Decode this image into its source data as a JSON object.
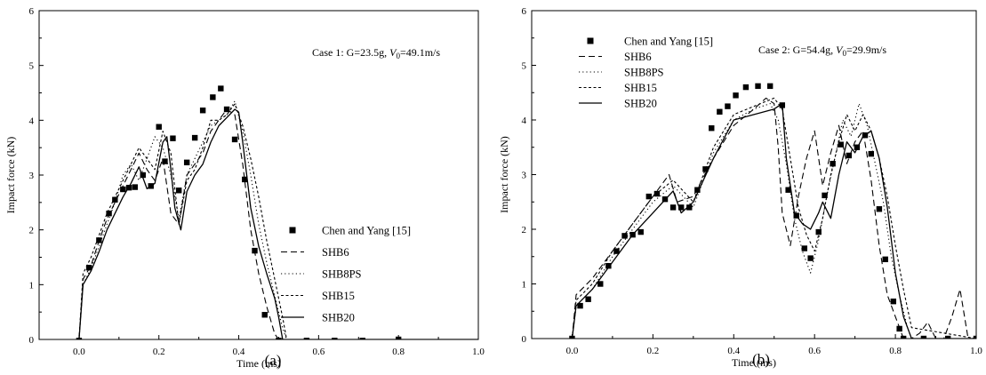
{
  "chart_data": [
    {
      "panel_label": "(a)",
      "type": "line",
      "annotation": {
        "prefix": "Case 1:  G=23.5g, ",
        "v_symbol": "V",
        "v_sub": "0",
        "v_suffix": "=49.1m/s"
      },
      "xlabel": "Time (ms)",
      "ylabel": "Impact force (kN)",
      "xlim": [
        -0.1,
        1.0
      ],
      "ylim": [
        0,
        6
      ],
      "xticks": [
        "0.0",
        "0.2",
        "0.4",
        "0.6",
        "0.8",
        "1.0"
      ],
      "yticks": [
        "0",
        "1",
        "2",
        "3",
        "4",
        "5",
        "6"
      ],
      "legend_position": "right",
      "series": [
        {
          "name": "Chen and Yang [15]",
          "style": "markers",
          "x": [
            0.0,
            0.025,
            0.05,
            0.075,
            0.09,
            0.11,
            0.125,
            0.14,
            0.16,
            0.18,
            0.2,
            0.215,
            0.235,
            0.25,
            0.27,
            0.29,
            0.31,
            0.335,
            0.355,
            0.37,
            0.39,
            0.415,
            0.44,
            0.465,
            0.5,
            0.57,
            0.64,
            0.71,
            0.8
          ],
          "y": [
            -0.02,
            1.31,
            1.81,
            2.3,
            2.55,
            2.74,
            2.77,
            2.78,
            3.0,
            2.8,
            3.88,
            3.25,
            3.67,
            2.72,
            3.23,
            3.68,
            4.18,
            4.42,
            4.58,
            4.2,
            3.65,
            2.92,
            1.62,
            0.45,
            -0.02,
            -0.02,
            -0.02,
            -0.02,
            0.0
          ]
        },
        {
          "name": "SHB6",
          "style": "dash",
          "x": [
            0.0,
            0.01,
            0.03,
            0.05,
            0.07,
            0.09,
            0.11,
            0.13,
            0.15,
            0.17,
            0.19,
            0.21,
            0.22,
            0.23,
            0.25,
            0.27,
            0.29,
            0.31,
            0.33,
            0.35,
            0.37,
            0.39,
            0.41,
            0.43,
            0.45,
            0.47,
            0.49,
            0.5,
            0.52,
            1.0
          ],
          "y": [
            0.0,
            1.1,
            1.35,
            1.8,
            2.2,
            2.5,
            2.8,
            3.1,
            3.4,
            3.1,
            2.9,
            3.3,
            2.8,
            2.3,
            2.1,
            3.0,
            3.2,
            3.4,
            3.8,
            4.0,
            4.2,
            4.1,
            3.2,
            2.0,
            1.2,
            0.6,
            0.1,
            0.0,
            0.0,
            0.0
          ]
        },
        {
          "name": "SHB8PS",
          "style": "dot",
          "x": [
            0.0,
            0.01,
            0.03,
            0.05,
            0.07,
            0.09,
            0.11,
            0.13,
            0.15,
            0.17,
            0.19,
            0.21,
            0.23,
            0.25,
            0.27,
            0.29,
            0.31,
            0.33,
            0.35,
            0.37,
            0.39,
            0.41,
            0.43,
            0.45,
            0.47,
            0.49,
            0.51,
            0.52,
            1.0
          ],
          "y": [
            0.0,
            1.0,
            1.3,
            1.7,
            2.1,
            2.5,
            3.0,
            3.2,
            2.9,
            3.3,
            3.7,
            3.5,
            3.0,
            2.2,
            3.0,
            3.3,
            3.6,
            3.9,
            4.0,
            4.1,
            4.35,
            3.8,
            3.0,
            2.1,
            1.4,
            0.8,
            0.2,
            0.0,
            0.0
          ]
        },
        {
          "name": "SHB15",
          "style": "shortdash",
          "x": [
            0.0,
            0.01,
            0.03,
            0.05,
            0.07,
            0.09,
            0.11,
            0.13,
            0.15,
            0.17,
            0.19,
            0.21,
            0.23,
            0.25,
            0.27,
            0.29,
            0.31,
            0.33,
            0.35,
            0.37,
            0.39,
            0.41,
            0.43,
            0.45,
            0.47,
            0.49,
            0.51,
            0.52,
            1.0
          ],
          "y": [
            0.0,
            1.2,
            1.5,
            1.9,
            2.3,
            2.6,
            2.9,
            3.2,
            3.5,
            3.3,
            3.1,
            3.8,
            3.4,
            2.1,
            2.9,
            3.1,
            3.5,
            4.0,
            4.0,
            4.1,
            4.3,
            3.9,
            3.3,
            2.6,
            1.8,
            1.1,
            0.4,
            0.0,
            0.0
          ]
        },
        {
          "name": "SHB20",
          "style": "solid",
          "x": [
            0.0,
            0.01,
            0.03,
            0.05,
            0.07,
            0.09,
            0.11,
            0.13,
            0.15,
            0.17,
            0.19,
            0.21,
            0.22,
            0.23,
            0.24,
            0.255,
            0.27,
            0.29,
            0.31,
            0.33,
            0.35,
            0.37,
            0.39,
            0.4,
            0.41,
            0.42,
            0.43,
            0.45,
            0.47,
            0.49,
            0.5,
            0.51,
            1.0
          ],
          "y": [
            0.0,
            1.0,
            1.25,
            1.6,
            2.0,
            2.3,
            2.6,
            2.85,
            3.15,
            2.75,
            2.85,
            3.6,
            3.7,
            3.1,
            2.4,
            2.0,
            2.7,
            3.0,
            3.2,
            3.6,
            3.9,
            4.05,
            4.2,
            4.15,
            3.6,
            3.0,
            2.4,
            1.7,
            1.2,
            0.75,
            0.4,
            0.0,
            0.0
          ]
        }
      ]
    },
    {
      "panel_label": "(b)",
      "type": "line",
      "annotation": {
        "prefix": "Case 2:  G=54.4g, ",
        "v_symbol": "V",
        "v_sub": "0",
        "v_suffix": "=29.9m/s"
      },
      "xlabel": "Time (ms)",
      "ylabel": "Impact force (kN)",
      "xlim": [
        -0.1,
        1.0
      ],
      "ylim": [
        0,
        6
      ],
      "xticks": [
        "0.0",
        "0.2",
        "0.4",
        "0.6",
        "0.8",
        "1.0"
      ],
      "yticks": [
        "0",
        "1",
        "2",
        "3",
        "4",
        "5",
        "6"
      ],
      "legend_position": "top-left",
      "series": [
        {
          "name": "Chen and Yang [15]",
          "style": "markers",
          "x": [
            0.0,
            0.02,
            0.04,
            0.07,
            0.09,
            0.11,
            0.13,
            0.15,
            0.17,
            0.19,
            0.21,
            0.23,
            0.25,
            0.27,
            0.29,
            0.31,
            0.33,
            0.345,
            0.365,
            0.385,
            0.405,
            0.43,
            0.46,
            0.49,
            0.52,
            0.535,
            0.555,
            0.575,
            0.59,
            0.61,
            0.625,
            0.645,
            0.665,
            0.685,
            0.705,
            0.725,
            0.74,
            0.76,
            0.775,
            0.795,
            0.81,
            0.82,
            0.87,
            0.93,
            1.0
          ],
          "y": [
            0.0,
            0.6,
            0.72,
            1.0,
            1.33,
            1.6,
            1.88,
            1.9,
            1.95,
            2.6,
            2.65,
            2.55,
            2.4,
            2.4,
            2.4,
            2.72,
            3.1,
            3.85,
            4.15,
            4.25,
            4.45,
            4.6,
            4.62,
            4.62,
            4.27,
            2.72,
            2.25,
            1.65,
            1.47,
            1.95,
            2.62,
            3.2,
            3.55,
            3.35,
            3.5,
            3.72,
            3.38,
            2.37,
            1.45,
            0.68,
            0.18,
            0.0,
            0.0,
            0.0,
            0.0
          ]
        },
        {
          "name": "SHB6",
          "style": "dash",
          "x": [
            0.0,
            0.01,
            0.05,
            0.1,
            0.15,
            0.2,
            0.24,
            0.26,
            0.3,
            0.35,
            0.4,
            0.45,
            0.48,
            0.5,
            0.51,
            0.52,
            0.54,
            0.56,
            0.58,
            0.6,
            0.62,
            0.64,
            0.66,
            0.68,
            0.7,
            0.72,
            0.74,
            0.76,
            0.78,
            0.8,
            0.82,
            0.84,
            0.86,
            0.88,
            0.9,
            0.92,
            0.94,
            0.96,
            0.98,
            1.0
          ],
          "y": [
            0.0,
            0.8,
            1.1,
            1.6,
            2.1,
            2.6,
            3.0,
            2.5,
            2.6,
            3.3,
            3.9,
            4.2,
            4.4,
            4.3,
            3.5,
            2.3,
            1.7,
            2.6,
            3.3,
            3.8,
            2.8,
            3.4,
            3.9,
            3.2,
            3.6,
            3.8,
            2.9,
            1.7,
            0.8,
            0.4,
            0.0,
            0.0,
            0.1,
            0.3,
            0.0,
            0.0,
            0.4,
            0.9,
            0.0,
            0.0
          ]
        },
        {
          "name": "SHB8PS",
          "style": "dot",
          "x": [
            0.0,
            0.01,
            0.05,
            0.1,
            0.15,
            0.2,
            0.25,
            0.3,
            0.35,
            0.4,
            0.45,
            0.49,
            0.51,
            0.53,
            0.55,
            0.57,
            0.59,
            0.61,
            0.63,
            0.65,
            0.67,
            0.69,
            0.71,
            0.73,
            0.75,
            0.77,
            0.79,
            0.81,
            0.83,
            0.84,
            1.0
          ],
          "y": [
            0.0,
            0.6,
            0.9,
            1.5,
            2.0,
            2.5,
            2.8,
            2.4,
            3.4,
            4.0,
            4.2,
            4.3,
            4.0,
            3.2,
            2.2,
            1.6,
            1.2,
            1.8,
            2.6,
            3.3,
            4.0,
            3.7,
            4.3,
            3.9,
            3.2,
            2.5,
            1.5,
            0.8,
            0.2,
            0.0,
            0.0
          ]
        },
        {
          "name": "SHB15",
          "style": "shortdash",
          "x": [
            0.0,
            0.01,
            0.05,
            0.1,
            0.15,
            0.2,
            0.25,
            0.3,
            0.35,
            0.4,
            0.45,
            0.5,
            0.52,
            0.54,
            0.56,
            0.58,
            0.6,
            0.62,
            0.64,
            0.66,
            0.68,
            0.7,
            0.72,
            0.74,
            0.76,
            0.78,
            0.8,
            0.82,
            0.84,
            1.0
          ],
          "y": [
            0.0,
            0.7,
            1.0,
            1.6,
            2.1,
            2.6,
            2.9,
            2.5,
            3.5,
            4.1,
            4.25,
            4.4,
            4.2,
            3.3,
            2.4,
            1.9,
            1.6,
            2.2,
            3.0,
            3.6,
            4.1,
            3.8,
            4.1,
            3.8,
            3.3,
            2.6,
            1.7,
            0.9,
            0.2,
            0.0
          ]
        },
        {
          "name": "SHB20",
          "style": "solid",
          "x": [
            0.0,
            0.01,
            0.05,
            0.1,
            0.15,
            0.2,
            0.25,
            0.27,
            0.3,
            0.35,
            0.4,
            0.45,
            0.5,
            0.52,
            0.53,
            0.55,
            0.57,
            0.59,
            0.61,
            0.62,
            0.64,
            0.66,
            0.68,
            0.7,
            0.72,
            0.74,
            0.76,
            0.78,
            0.8,
            0.82,
            0.84,
            1.0
          ],
          "y": [
            0.0,
            0.6,
            0.9,
            1.4,
            1.9,
            2.3,
            2.7,
            2.3,
            2.5,
            3.3,
            4.0,
            4.1,
            4.2,
            4.3,
            3.3,
            2.3,
            2.1,
            2.0,
            2.3,
            2.5,
            2.2,
            3.0,
            3.6,
            3.4,
            3.7,
            3.8,
            3.3,
            2.4,
            1.2,
            0.4,
            0.0,
            0.0
          ]
        }
      ]
    }
  ]
}
